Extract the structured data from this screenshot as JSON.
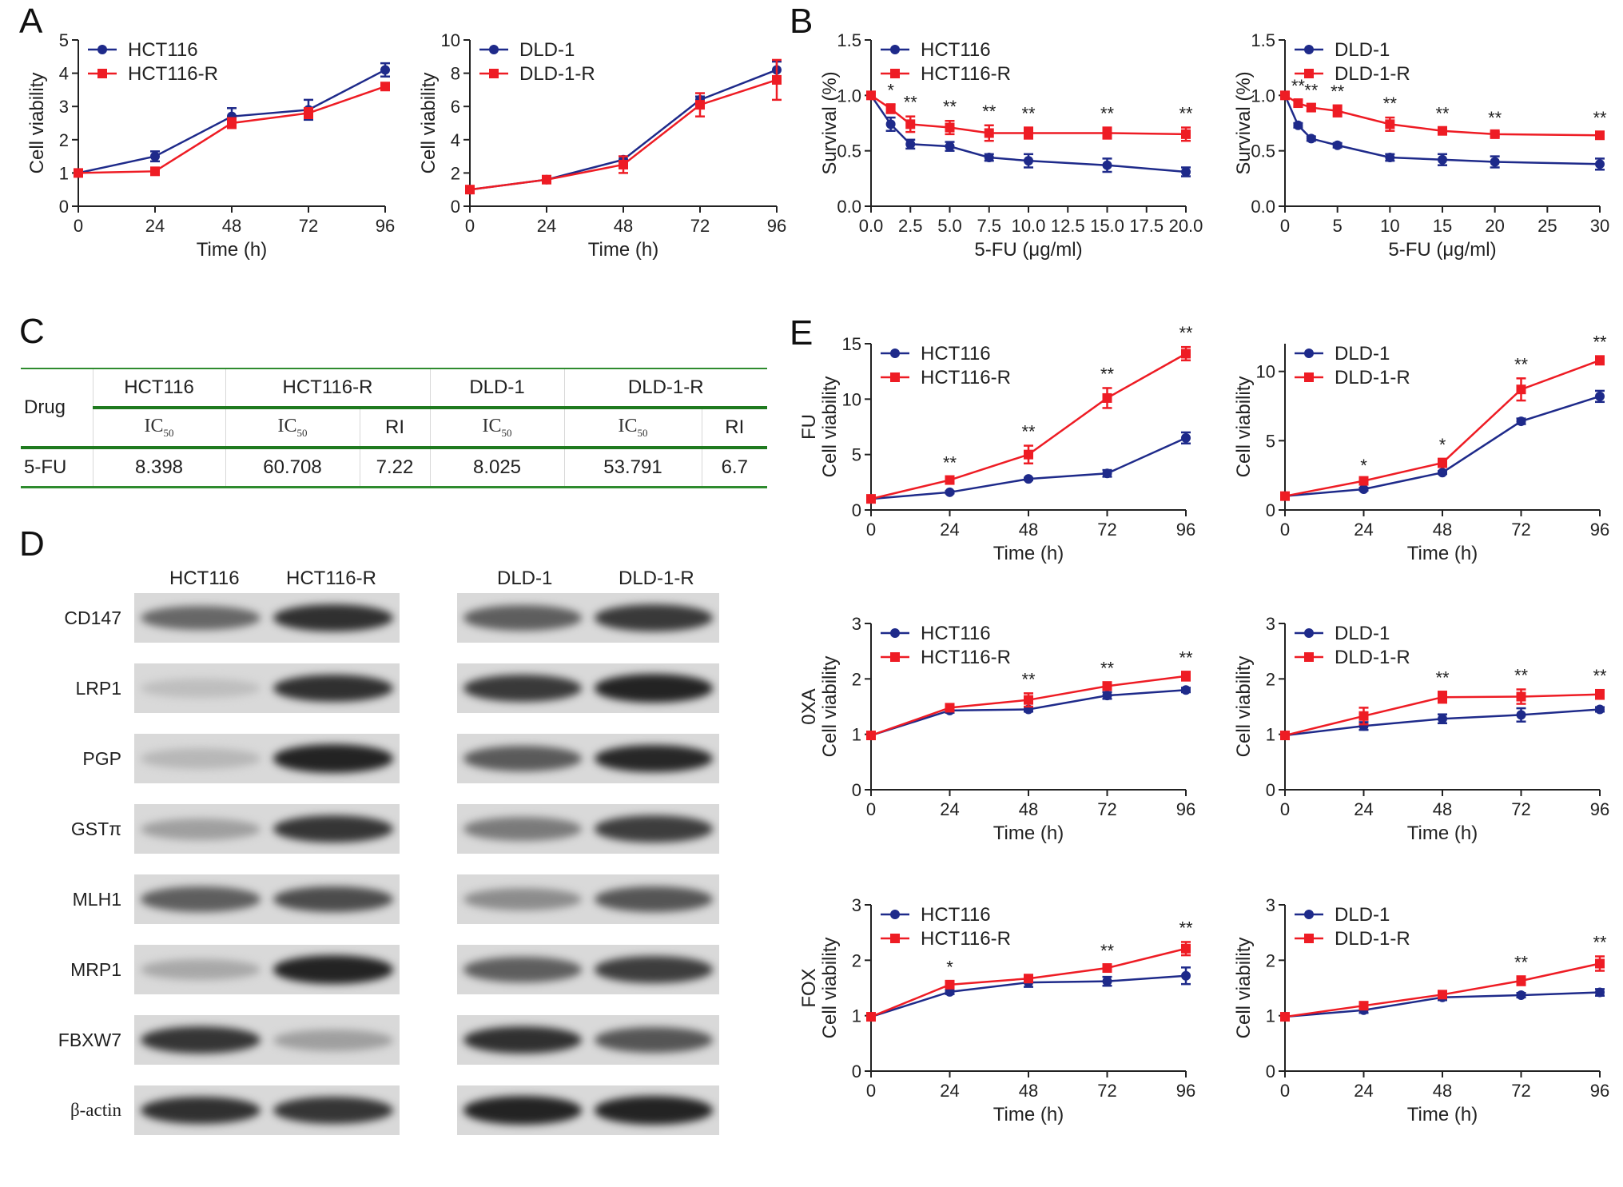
{
  "panel_letters": {
    "a": "A",
    "b": "B",
    "c": "C",
    "d": "D",
    "e": "E"
  },
  "colors": {
    "blue": "#1e2a8a",
    "red": "#ee1c24",
    "table_line": "#2e8b2e"
  },
  "chart_data": [
    {
      "id": "A1",
      "type": "line",
      "xlabel": "Time (h)",
      "ylabel": "Cell viability",
      "x": [
        0,
        24,
        48,
        72,
        96
      ],
      "xlim": [
        0,
        96
      ],
      "ylim": [
        0,
        5
      ],
      "xticks": [
        0,
        24,
        48,
        72,
        96
      ],
      "yticks": [
        0,
        1,
        2,
        3,
        4,
        5
      ],
      "series": [
        {
          "name": "HCT116",
          "color": "blue",
          "marker": "circle",
          "values": [
            1.0,
            1.5,
            2.7,
            2.9,
            4.1
          ],
          "err": [
            0.05,
            0.15,
            0.25,
            0.3,
            0.2
          ]
        },
        {
          "name": "HCT116-R",
          "color": "red",
          "marker": "square",
          "values": [
            1.0,
            1.05,
            2.5,
            2.8,
            3.6
          ],
          "err": [
            0.03,
            0.05,
            0.15,
            0.15,
            0.1
          ]
        }
      ],
      "stars": []
    },
    {
      "id": "A2",
      "type": "line",
      "xlabel": "Time (h)",
      "ylabel": "Cell viability",
      "x": [
        0,
        24,
        48,
        72,
        96
      ],
      "xlim": [
        0,
        96
      ],
      "ylim": [
        0,
        10
      ],
      "xticks": [
        0,
        24,
        48,
        72,
        96
      ],
      "yticks": [
        0,
        2,
        4,
        6,
        8,
        10
      ],
      "series": [
        {
          "name": "DLD-1",
          "color": "blue",
          "marker": "circle",
          "values": [
            1.0,
            1.6,
            2.8,
            6.4,
            8.2
          ],
          "err": [
            0.05,
            0.1,
            0.2,
            0.2,
            0.5
          ]
        },
        {
          "name": "DLD-1-R",
          "color": "red",
          "marker": "square",
          "values": [
            1.0,
            1.6,
            2.5,
            6.1,
            7.6
          ],
          "err": [
            0.05,
            0.1,
            0.5,
            0.7,
            1.2
          ]
        }
      ],
      "stars": []
    },
    {
      "id": "B1",
      "type": "line",
      "xlabel": "5-FU (μg/ml)",
      "ylabel": "Survival (%)",
      "x": [
        0,
        1.25,
        2.5,
        5,
        7.5,
        10,
        15,
        20
      ],
      "xlim": [
        0,
        20
      ],
      "ylim": [
        0,
        1.5
      ],
      "xticks": [
        0,
        2.5,
        5,
        7.5,
        10,
        12.5,
        15,
        17.5,
        20
      ],
      "xtick_labels": [
        "0.0",
        "2.5",
        "5.0",
        "7.5",
        "10.0",
        "12.5",
        "15.0",
        "17.5",
        "20.0"
      ],
      "yticks": [
        0,
        0.5,
        1,
        1.5
      ],
      "ytick_labels": [
        "0.0",
        "0.5",
        "1.0",
        "1.5"
      ],
      "series": [
        {
          "name": "HCT116",
          "color": "blue",
          "marker": "circle",
          "values": [
            1.0,
            0.74,
            0.56,
            0.54,
            0.44,
            0.41,
            0.37,
            0.31
          ],
          "err": [
            0.02,
            0.06,
            0.04,
            0.04,
            0.03,
            0.06,
            0.06,
            0.04
          ]
        },
        {
          "name": "HCT116-R",
          "color": "red",
          "marker": "square",
          "values": [
            1.0,
            0.88,
            0.74,
            0.71,
            0.66,
            0.66,
            0.66,
            0.65
          ],
          "err": [
            0.02,
            0.04,
            0.07,
            0.06,
            0.07,
            0.05,
            0.05,
            0.06
          ]
        }
      ],
      "stars": [
        "",
        "*",
        "**",
        "**",
        "**",
        "**",
        "**",
        "**"
      ]
    },
    {
      "id": "B2",
      "type": "line",
      "xlabel": "5-FU (μg/ml)",
      "ylabel": "Survival (%)",
      "x": [
        0,
        1.25,
        2.5,
        5,
        10,
        15,
        20,
        30
      ],
      "xlim": [
        0,
        30
      ],
      "ylim": [
        0,
        1.5
      ],
      "xticks": [
        0,
        5,
        10,
        15,
        20,
        25,
        30
      ],
      "yticks": [
        0,
        0.5,
        1,
        1.5
      ],
      "ytick_labels": [
        "0.0",
        "0.5",
        "1.0",
        "1.5"
      ],
      "series": [
        {
          "name": "DLD-1",
          "color": "blue",
          "marker": "circle",
          "values": [
            1.0,
            0.73,
            0.61,
            0.55,
            0.44,
            0.42,
            0.4,
            0.38
          ],
          "err": [
            0.02,
            0.02,
            0.02,
            0.02,
            0.03,
            0.05,
            0.05,
            0.05
          ]
        },
        {
          "name": "DLD-1-R",
          "color": "red",
          "marker": "square",
          "values": [
            1.0,
            0.93,
            0.89,
            0.86,
            0.74,
            0.68,
            0.65,
            0.64
          ],
          "err": [
            0.02,
            0.03,
            0.03,
            0.05,
            0.06,
            0.03,
            0.02,
            0.03
          ]
        }
      ],
      "stars": [
        "",
        "**",
        "**",
        "**",
        "**",
        "**",
        "**",
        "**"
      ]
    },
    {
      "id": "E1",
      "type": "line",
      "xlabel": "Time (h)",
      "ylabel": "FU\nCell viability",
      "x": [
        0,
        24,
        48,
        72,
        96
      ],
      "xlim": [
        0,
        96
      ],
      "ylim": [
        0,
        15
      ],
      "xticks": [
        0,
        24,
        48,
        72,
        96
      ],
      "yticks": [
        0,
        5,
        10,
        15
      ],
      "series": [
        {
          "name": "HCT116",
          "color": "blue",
          "marker": "circle",
          "values": [
            1.0,
            1.6,
            2.8,
            3.3,
            6.5
          ],
          "err": [
            0.05,
            0.1,
            0.1,
            0.3,
            0.5
          ]
        },
        {
          "name": "HCT116-R",
          "color": "red",
          "marker": "square",
          "values": [
            1.0,
            2.7,
            5.0,
            10.1,
            14.1
          ],
          "err": [
            0.05,
            0.3,
            0.8,
            0.9,
            0.6
          ]
        }
      ],
      "stars": [
        "",
        "**",
        "**",
        "**",
        "**"
      ]
    },
    {
      "id": "E2",
      "type": "line",
      "xlabel": "Time (h)",
      "ylabel": "Cell viability",
      "x": [
        0,
        24,
        48,
        72,
        96
      ],
      "xlim": [
        0,
        96
      ],
      "ylim": [
        0,
        12
      ],
      "xticks": [
        0,
        24,
        48,
        72,
        96
      ],
      "yticks": [
        0,
        5,
        10
      ],
      "series": [
        {
          "name": "DLD-1",
          "color": "blue",
          "marker": "circle",
          "values": [
            1.0,
            1.5,
            2.7,
            6.4,
            8.2
          ],
          "err": [
            0.05,
            0.1,
            0.1,
            0.2,
            0.4
          ]
        },
        {
          "name": "DLD-1-R",
          "color": "red",
          "marker": "square",
          "values": [
            1.0,
            2.1,
            3.4,
            8.7,
            10.8
          ],
          "err": [
            0.05,
            0.1,
            0.3,
            0.8,
            0.3
          ]
        }
      ],
      "stars": [
        "",
        "*",
        "*",
        "**",
        "**"
      ]
    },
    {
      "id": "E3",
      "type": "line",
      "xlabel": "Time (h)",
      "ylabel": "0XA\nCell viability",
      "x": [
        0,
        24,
        48,
        72,
        96
      ],
      "xlim": [
        0,
        96
      ],
      "ylim": [
        0,
        3
      ],
      "xticks": [
        0,
        24,
        48,
        72,
        96
      ],
      "yticks": [
        0,
        1,
        2,
        3
      ],
      "series": [
        {
          "name": "HCT116",
          "color": "blue",
          "marker": "circle",
          "values": [
            0.98,
            1.43,
            1.45,
            1.7,
            1.8
          ],
          "err": [
            0.02,
            0.04,
            0.04,
            0.06,
            0.04
          ]
        },
        {
          "name": "HCT116-R",
          "color": "red",
          "marker": "square",
          "values": [
            0.98,
            1.48,
            1.62,
            1.87,
            2.05
          ],
          "err": [
            0.02,
            0.04,
            0.12,
            0.07,
            0.08
          ]
        }
      ],
      "stars": [
        "",
        "",
        "**",
        "**",
        "**"
      ]
    },
    {
      "id": "E4",
      "type": "line",
      "xlabel": "Time (h)",
      "ylabel": "Cell viability",
      "x": [
        0,
        24,
        48,
        72,
        96
      ],
      "xlim": [
        0,
        96
      ],
      "ylim": [
        0,
        3
      ],
      "xticks": [
        0,
        24,
        48,
        72,
        96
      ],
      "yticks": [
        0,
        1,
        2,
        3
      ],
      "series": [
        {
          "name": "DLD-1",
          "color": "blue",
          "marker": "circle",
          "values": [
            0.98,
            1.15,
            1.28,
            1.35,
            1.45
          ],
          "err": [
            0.02,
            0.07,
            0.08,
            0.12,
            0.04
          ]
        },
        {
          "name": "DLD-1-R",
          "color": "red",
          "marker": "square",
          "values": [
            0.98,
            1.33,
            1.67,
            1.68,
            1.72
          ],
          "err": [
            0.02,
            0.15,
            0.1,
            0.13,
            0.08
          ]
        }
      ],
      "stars": [
        "",
        "",
        "**",
        "**",
        "**"
      ]
    },
    {
      "id": "E5",
      "type": "line",
      "xlabel": "Time (h)",
      "ylabel": "FOX\nCell viability",
      "x": [
        0,
        24,
        48,
        72,
        96
      ],
      "xlim": [
        0,
        96
      ],
      "ylim": [
        0,
        3
      ],
      "xticks": [
        0,
        24,
        48,
        72,
        96
      ],
      "yticks": [
        0,
        1,
        2,
        3
      ],
      "series": [
        {
          "name": "HCT116",
          "color": "blue",
          "marker": "circle",
          "values": [
            0.98,
            1.43,
            1.6,
            1.62,
            1.72
          ],
          "err": [
            0.02,
            0.04,
            0.08,
            0.08,
            0.15
          ]
        },
        {
          "name": "HCT116-R",
          "color": "red",
          "marker": "square",
          "values": [
            0.98,
            1.56,
            1.67,
            1.86,
            2.21
          ],
          "err": [
            0.02,
            0.06,
            0.04,
            0.06,
            0.12
          ]
        }
      ],
      "stars": [
        "",
        "*",
        "",
        "**",
        "**"
      ]
    },
    {
      "id": "E6",
      "type": "line",
      "xlabel": "Time (h)",
      "ylabel": "Cell viability",
      "x": [
        0,
        24,
        48,
        72,
        96
      ],
      "xlim": [
        0,
        96
      ],
      "ylim": [
        0,
        3
      ],
      "xticks": [
        0,
        24,
        48,
        72,
        96
      ],
      "yticks": [
        0,
        1,
        2,
        3
      ],
      "series": [
        {
          "name": "DLD-1",
          "color": "blue",
          "marker": "circle",
          "values": [
            0.98,
            1.1,
            1.33,
            1.37,
            1.42
          ],
          "err": [
            0.02,
            0.05,
            0.05,
            0.04,
            0.06
          ]
        },
        {
          "name": "DLD-1-R",
          "color": "red",
          "marker": "square",
          "values": [
            0.98,
            1.18,
            1.38,
            1.63,
            1.94
          ],
          "err": [
            0.02,
            0.03,
            0.03,
            0.08,
            0.13
          ]
        }
      ],
      "stars": [
        "",
        "",
        "",
        "**",
        "**"
      ]
    }
  ],
  "table": {
    "col_drug": "Drug",
    "groups": [
      "HCT116",
      "HCT116-R",
      "DLD-1",
      "DLD-1-R"
    ],
    "ic": "IC",
    "ic_sub": "50",
    "ri": "RI",
    "row": {
      "drug": "5-FU",
      "hct116_ic50": "8.398",
      "hct116r_ic50": "60.708",
      "hct116r_ri": "7.22",
      "dld1_ic50": "8.025",
      "dld1r_ic50": "53.791",
      "dld1r_ri": "6.7"
    }
  },
  "blots": {
    "left_heads": [
      "HCT116",
      "HCT116-R"
    ],
    "right_heads": [
      "DLD-1",
      "DLD-1-R"
    ],
    "proteins": [
      "CD147",
      "LRP1",
      "PGP",
      "GSTπ",
      "MLH1",
      "MRP1",
      "FBXW7",
      "β-actin"
    ],
    "intensity_left": [
      [
        0.55,
        0.85
      ],
      [
        0.08,
        0.85
      ],
      [
        0.12,
        0.92
      ],
      [
        0.25,
        0.82
      ],
      [
        0.6,
        0.7
      ],
      [
        0.2,
        0.92
      ],
      [
        0.82,
        0.25
      ],
      [
        0.85,
        0.82
      ]
    ],
    "intensity_right": [
      [
        0.6,
        0.8
      ],
      [
        0.8,
        0.92
      ],
      [
        0.62,
        0.9
      ],
      [
        0.45,
        0.78
      ],
      [
        0.35,
        0.65
      ],
      [
        0.6,
        0.78
      ],
      [
        0.85,
        0.65
      ],
      [
        0.92,
        0.92
      ]
    ]
  }
}
